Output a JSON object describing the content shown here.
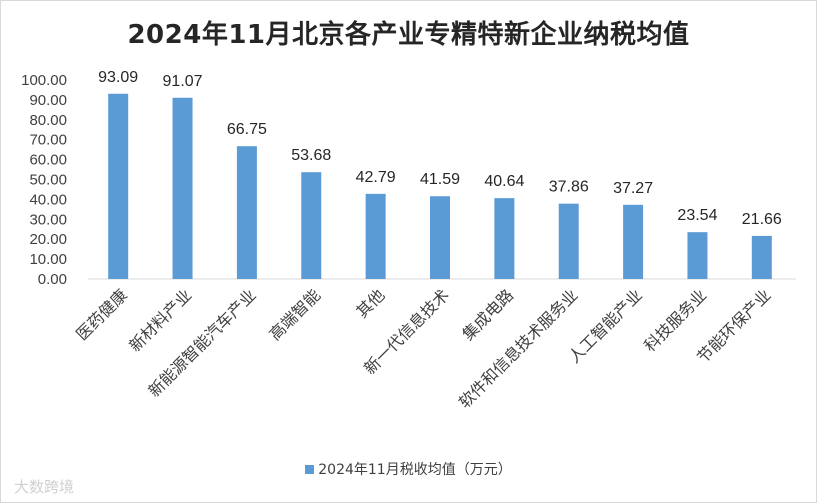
{
  "chart_data": {
    "type": "bar",
    "title": "2024年11月北京各产业专精特新企业纳税均值",
    "categories": [
      "医药健康",
      "新材料产业",
      "新能源智能汽车产业",
      "高端智能",
      "其他",
      "新一代信息技术",
      "集成电路",
      "软件和信息技术服务业",
      "人工智能产业",
      "科技服务业",
      "节能环保产业"
    ],
    "series": [
      {
        "name": "2024年11月税收均值（万元）",
        "values": [
          93.09,
          91.07,
          66.75,
          53.68,
          42.79,
          41.59,
          40.64,
          37.86,
          37.27,
          23.54,
          21.66
        ],
        "color": "#5b9bd5"
      }
    ],
    "y_ticks": [
      "0.00",
      "10.00",
      "20.00",
      "30.00",
      "40.00",
      "50.00",
      "60.00",
      "70.00",
      "80.00",
      "90.00",
      "100.00"
    ],
    "ylim": [
      0,
      100
    ],
    "grid": false,
    "legend_position": "bottom",
    "data_labels": [
      "93.09",
      "91.07",
      "66.75",
      "53.68",
      "42.79",
      "41.59",
      "40.64",
      "37.86",
      "37.27",
      "23.54",
      "21.66"
    ]
  },
  "watermark": "大数跨境"
}
